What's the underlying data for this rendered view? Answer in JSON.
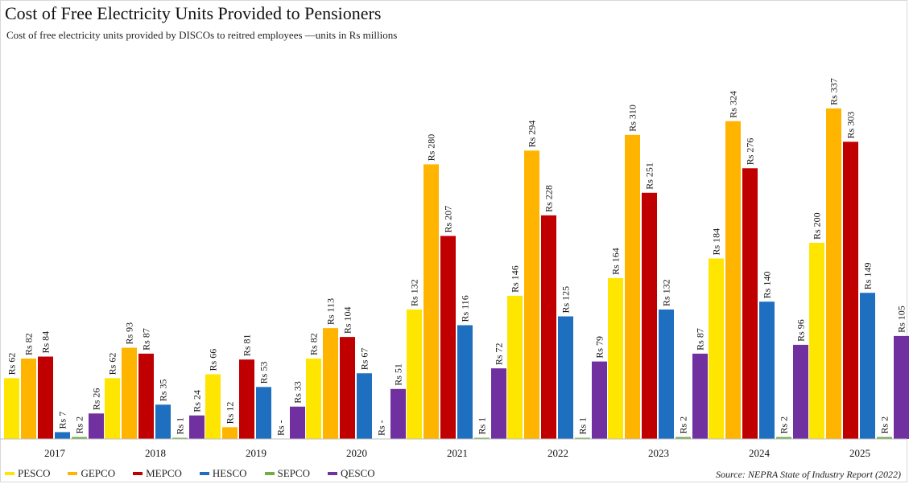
{
  "chart_data": {
    "type": "bar",
    "title": "Cost of Free Electricity Units Provided to Pensioners",
    "subtitle": "Cost of free electricity units provided by DISCOs to reitred employees —units in Rs millions",
    "xlabel": "",
    "ylabel": "",
    "ylim": [
      0,
      350
    ],
    "grid": false,
    "legend_position": "bottom-left",
    "source": "Source: NEPRA State of Industry Report (2022)",
    "categories": [
      "2017",
      "2018",
      "2019",
      "2020",
      "2021",
      "2022",
      "2023",
      "2024",
      "2025"
    ],
    "series": [
      {
        "name": "PESCO",
        "color": "#ffe600",
        "values": [
          62,
          62,
          66,
          82,
          132,
          146,
          164,
          184,
          200
        ],
        "labels": [
          "Rs 62",
          "Rs 62",
          "Rs 66",
          "Rs 82",
          "Rs 132",
          "Rs 146",
          "Rs 164",
          "Rs 184",
          "Rs 200"
        ]
      },
      {
        "name": "GEPCO",
        "color": "#ffb400",
        "values": [
          82,
          93,
          12,
          113,
          280,
          294,
          310,
          324,
          337
        ],
        "labels": [
          "Rs 82",
          "Rs 93",
          "Rs 12",
          "Rs 113",
          "Rs 280",
          "Rs 294",
          "Rs 310",
          "Rs 324",
          "Rs 337"
        ]
      },
      {
        "name": "MEPCO",
        "color": "#c00000",
        "values": [
          84,
          87,
          81,
          104,
          207,
          228,
          251,
          276,
          303
        ],
        "labels": [
          "Rs 84",
          "Rs 87",
          "Rs 81",
          "Rs 104",
          "Rs 207",
          "Rs 228",
          "Rs 251",
          "Rs 276",
          "Rs 303"
        ]
      },
      {
        "name": "HESCO",
        "color": "#1f6fc0",
        "values": [
          7,
          35,
          53,
          67,
          116,
          125,
          132,
          140,
          149
        ],
        "labels": [
          "Rs 7",
          "Rs 35",
          "Rs 53",
          "Rs 67",
          "Rs 116",
          "Rs 125",
          "Rs 132",
          "Rs 140",
          "Rs 149"
        ]
      },
      {
        "name": "SEPCO",
        "color": "#70ad47",
        "values": [
          2,
          1,
          0,
          0,
          1,
          1,
          2,
          2,
          2
        ],
        "labels": [
          "Rs 2",
          "Rs 1",
          "Rs -",
          "Rs -",
          "Rs 1",
          "Rs 1",
          "Rs 2",
          "Rs 2",
          "Rs 2"
        ]
      },
      {
        "name": "QESCO",
        "color": "#7030a0",
        "values": [
          26,
          24,
          33,
          51,
          72,
          79,
          87,
          96,
          105
        ],
        "labels": [
          "Rs 26",
          "Rs 24",
          "Rs 33",
          "Rs 51",
          "Rs 72",
          "Rs 79",
          "Rs 87",
          "Rs 96",
          "Rs 105"
        ]
      }
    ]
  }
}
